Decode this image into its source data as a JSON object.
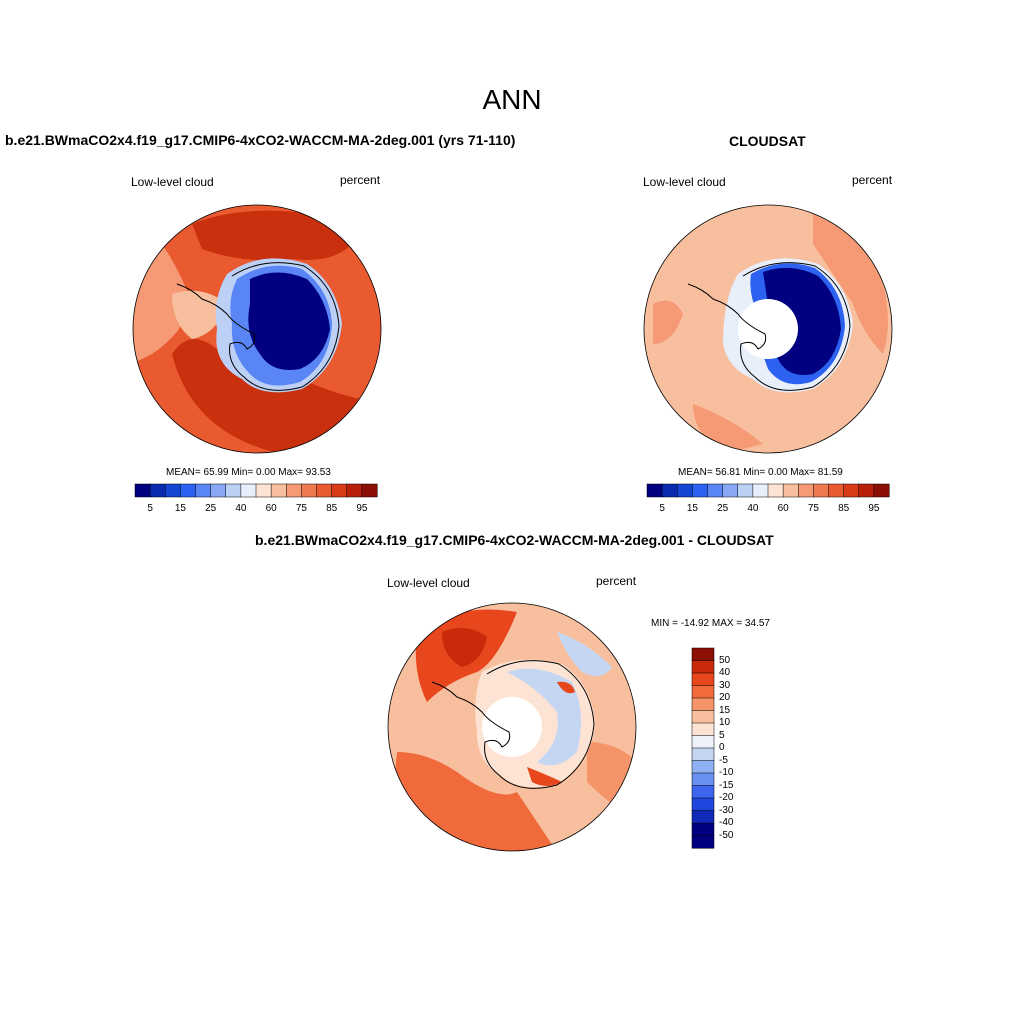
{
  "figure": {
    "title": "ANN"
  },
  "panels": {
    "model": {
      "title": "b.e21.BWmaCO2x4.f19_g17.CMIP6-4xCO2-WACCM-MA-2deg.001 (yrs 71-110)",
      "left_label": "Low-level cloud",
      "right_label": "percent",
      "stats": "MEAN=  65.99  Min=   0.00  Max=  93.53"
    },
    "obs": {
      "title": "CLOUDSAT",
      "left_label": "Low-level cloud",
      "right_label": "percent",
      "stats": "MEAN=  56.81  Min=   0.00  Max=  81.59"
    },
    "diff": {
      "title": "b.e21.BWmaCO2x4.f19_g17.CMIP6-4xCO2-WACCM-MA-2deg.001 - CLOUDSAT",
      "left_label": "Low-level cloud",
      "right_label": "percent",
      "stats": "MIN = -14.92 MAX =  34.57"
    }
  },
  "colorbars": {
    "abs": {
      "colors": [
        "#000080",
        "#0a2bb0",
        "#1446d4",
        "#2d62f0",
        "#5a86f5",
        "#8aa9f5",
        "#bcd0f5",
        "#e8eefa",
        "#fde3d4",
        "#f8bf9e",
        "#f59a75",
        "#f07a50",
        "#ea5a30",
        "#d83c16",
        "#b8200a",
        "#8c0f05"
      ],
      "tick_labels": [
        "5",
        "15",
        "25",
        "40",
        "60",
        "75",
        "85",
        "95"
      ]
    },
    "diff": {
      "colors": [
        "#8c0f05",
        "#c82a0a",
        "#e8461c",
        "#f26a3c",
        "#f59468",
        "#f8bf9e",
        "#fde3d4",
        "#eef2fa",
        "#c5d6f3",
        "#8fb0f2",
        "#6a8ff2",
        "#3d64ef",
        "#1f46de",
        "#1129b8",
        "#000080"
      ],
      "tick_labels": [
        "50",
        "40",
        "30",
        "20",
        "15",
        "10",
        "5",
        "0",
        "-5",
        "-10",
        "-15",
        "-20",
        "-30",
        "-40",
        "-50"
      ]
    }
  },
  "map_colors": {
    "ocean_high": "#d8461c",
    "ocean_mid": "#f06a3c",
    "ocean_low": "#f8bf9e",
    "ice_low": "#000080",
    "ice_mid": "#2d62f0",
    "ice_light": "#bcd0f5",
    "coast": "#000000",
    "missing": "#ffffff"
  }
}
